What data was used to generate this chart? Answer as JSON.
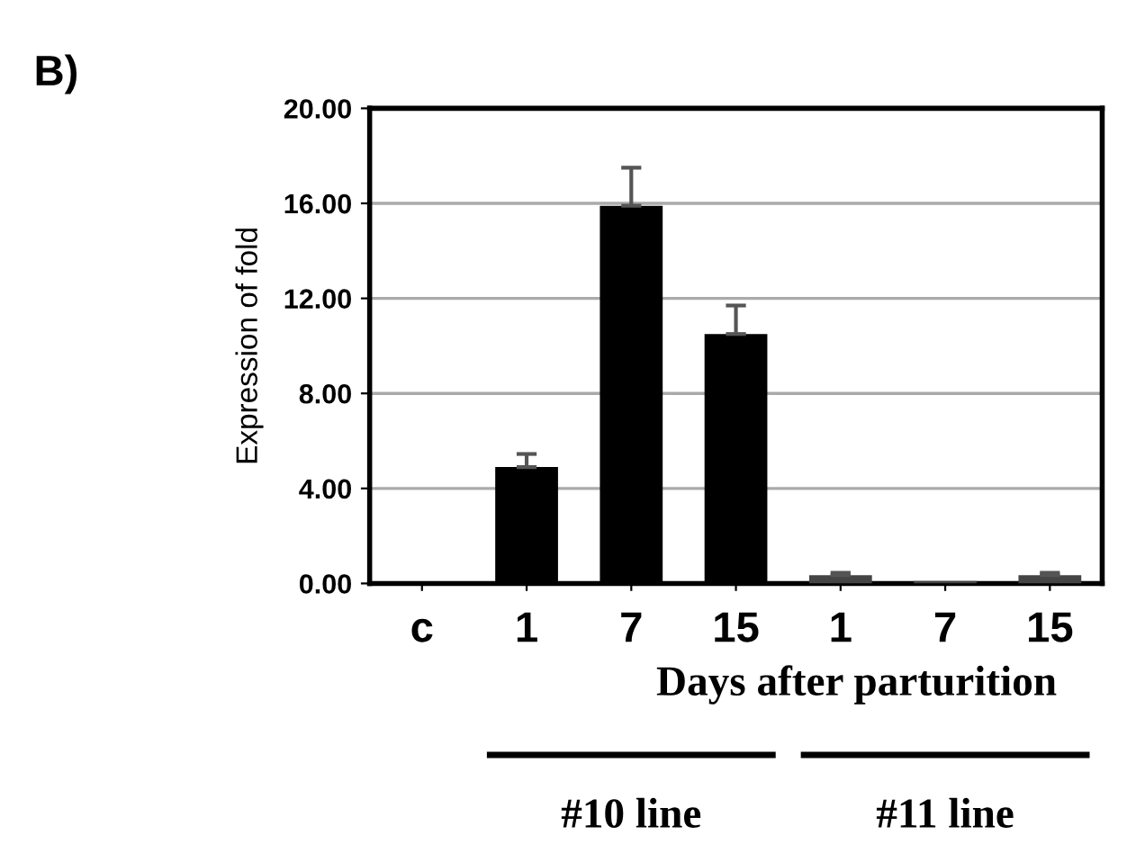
{
  "chart_data": {
    "type": "bar",
    "title": "B)",
    "ylabel": "Expression of fold",
    "xlabel": "Days after parturition",
    "categories": [
      "c",
      "1",
      "7",
      "15",
      "1",
      "7",
      "15"
    ],
    "values": [
      0,
      4.9,
      15.9,
      10.5,
      0.35,
      0.1,
      0.35
    ],
    "errors": [
      null,
      [
        4.9,
        5.45
      ],
      [
        15.9,
        17.5
      ],
      [
        10.5,
        11.7
      ],
      [
        0.35,
        0.45
      ],
      null,
      [
        0.35,
        0.45
      ]
    ],
    "colors": [
      "#000000",
      "#000000",
      "#000000",
      "#000000",
      "#444444",
      "#444444",
      "#444444"
    ],
    "ylim": [
      0,
      20
    ],
    "yticks": [
      {
        "value": 0,
        "label": "0.00"
      },
      {
        "value": 4,
        "label": "4.00"
      },
      {
        "value": 8,
        "label": "8.00"
      },
      {
        "value": 12,
        "label": "12.00"
      },
      {
        "value": 16,
        "label": "16.00"
      },
      {
        "value": 20,
        "label": "20.00"
      }
    ],
    "grid": "y",
    "annotations": [
      "#10 line",
      "#11 line"
    ]
  }
}
